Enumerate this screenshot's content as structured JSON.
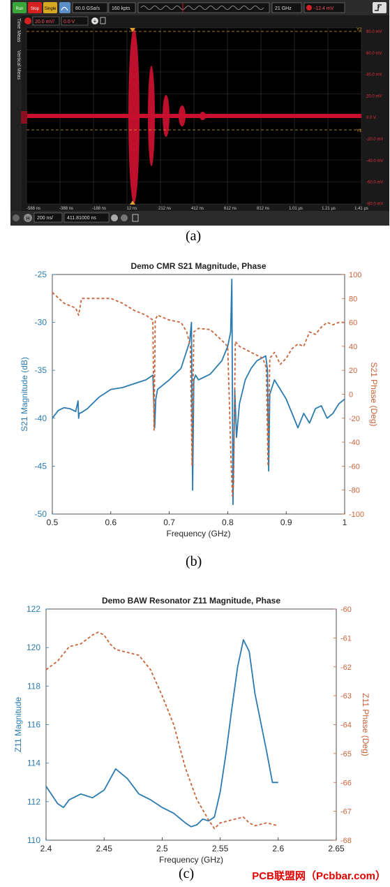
{
  "scope": {
    "toolbar": {
      "run": "Run",
      "stop": "Stop",
      "single": "Single",
      "sample_rate": "80.0 GSa/s",
      "points": "160 kpts",
      "bandwidth": "21 GHz",
      "trigger_level": "-12.4 mV"
    },
    "channel": {
      "scale": "20.0 mV/",
      "offset": "0.0 V"
    },
    "side_tabs": [
      "Time Meas",
      "Vertical Meas"
    ],
    "right_labels": [
      "80.0 mV",
      "60.0 mV",
      "40.0 mV",
      "20.0 mV",
      "0.0 V",
      "-20.0 mV",
      "-40.0 mV",
      "-60.0 mV",
      "-80.0 mV"
    ],
    "time_labels": [
      "-588 ns",
      "-388 ns",
      "-188 ns",
      "12 ns",
      "212 ns",
      "412 ns",
      "612 ns",
      "812 ns",
      "1.01 µs",
      "1.21 µs",
      "1.41 µs"
    ],
    "marker_top": "Y2",
    "marker_mid": "Y1",
    "timebase": {
      "scale": "200 ns/",
      "position": "411.81000 ns"
    }
  },
  "captions": {
    "a": "(a)",
    "b": "(b)",
    "c": "(c)"
  },
  "watermark": "PCB联盟网（Pcbbar.com）",
  "chart_data": [
    {
      "type": "line",
      "title": "Demo CMR S21 Magnitude, Phase",
      "xlabel": "Frequency (GHz)",
      "ylabel": "S21 Magnitude (dB)",
      "y2label": "S21 Phase (Deg)",
      "xlim": [
        0.5,
        1.0
      ],
      "ylim": [
        -50,
        -25
      ],
      "y2lim": [
        -100,
        100
      ],
      "xticks": [
        "0.5",
        "0.6",
        "0.7",
        "0.8",
        "0.9",
        "1"
      ],
      "yticks": [
        "-25",
        "-30",
        "-35",
        "-40",
        "-45",
        "-50"
      ],
      "y2ticks": [
        "100",
        "80",
        "60",
        "40",
        "20",
        "0",
        "-20",
        "-40",
        "-60",
        "-80",
        "-100"
      ],
      "colors": {
        "magnitude": "#2b7bb0",
        "phase": "#c8633a"
      },
      "series": [
        {
          "axis": "left",
          "x": [
            0.5,
            0.51,
            0.52,
            0.53,
            0.54,
            0.544,
            0.545,
            0.546,
            0.55,
            0.56,
            0.57,
            0.58,
            0.6,
            0.62,
            0.64,
            0.66,
            0.672,
            0.675,
            0.677,
            0.68,
            0.7,
            0.72,
            0.735,
            0.738,
            0.74,
            0.742,
            0.745,
            0.75,
            0.77,
            0.79,
            0.8,
            0.805,
            0.807,
            0.809,
            0.812,
            0.815,
            0.82,
            0.83,
            0.84,
            0.85,
            0.865,
            0.868,
            0.87,
            0.872,
            0.88,
            0.89,
            0.9,
            0.91,
            0.92,
            0.93,
            0.94,
            0.95,
            0.96,
            0.97,
            0.98,
            0.99,
            1.0
          ],
          "y": [
            -40.0,
            -39.2,
            -38.9,
            -39.0,
            -39.3,
            -38.2,
            -40.0,
            -39.5,
            -39.4,
            -39.0,
            -38.4,
            -37.8,
            -37.0,
            -36.8,
            -36.4,
            -36.0,
            -35.5,
            -41.0,
            -38.0,
            -37.0,
            -36.0,
            -34.8,
            -32.0,
            -30.0,
            -47.5,
            -36.0,
            -35.5,
            -36.0,
            -35.4,
            -34.0,
            -32.5,
            -31.0,
            -25.5,
            -49.0,
            -37.0,
            -42.0,
            -38.5,
            -36.0,
            -34.8,
            -34.0,
            -33.5,
            -35.0,
            -45.5,
            -37.5,
            -36.0,
            -37.0,
            -38.0,
            -39.5,
            -41.0,
            -39.5,
            -40.5,
            -39.0,
            -38.7,
            -40.0,
            -39.5,
            -38.5,
            -38.0
          ],
          "name": ""
        },
        {
          "axis": "right",
          "x": [
            0.5,
            0.52,
            0.54,
            0.545,
            0.55,
            0.57,
            0.6,
            0.62,
            0.64,
            0.66,
            0.672,
            0.674,
            0.676,
            0.68,
            0.7,
            0.72,
            0.73,
            0.736,
            0.739,
            0.742,
            0.75,
            0.77,
            0.79,
            0.8,
            0.806,
            0.808,
            0.81,
            0.813,
            0.82,
            0.84,
            0.86,
            0.866,
            0.869,
            0.872,
            0.88,
            0.89,
            0.9,
            0.91,
            0.92,
            0.93,
            0.94,
            0.95,
            0.96,
            0.97,
            0.98,
            0.99,
            1.0
          ],
          "y": [
            85,
            76,
            72,
            66,
            80,
            80,
            80,
            76,
            70,
            66,
            62,
            -30,
            62,
            66,
            62,
            60,
            52,
            40,
            -60,
            52,
            55,
            54,
            45,
            40,
            -60,
            -85,
            -75,
            44,
            40,
            35,
            30,
            22,
            -60,
            30,
            35,
            25,
            30,
            38,
            42,
            40,
            52,
            50,
            56,
            60,
            58,
            60,
            60
          ],
          "name": ""
        }
      ]
    },
    {
      "type": "line",
      "title": "Demo BAW Resonator Z11 Magnitude, Phase",
      "xlabel": "Frequency (GHz)",
      "ylabel": "Z11 Magnitude",
      "y2label": "Z11 Phase (Deg)",
      "xlim": [
        2.4,
        2.65
      ],
      "ylim": [
        110,
        122
      ],
      "y2lim": [
        -68,
        -60
      ],
      "xticks": [
        "2.4",
        "2.45",
        "2.5",
        "2.55",
        "2.6",
        "2.65"
      ],
      "yticks": [
        "122",
        "120",
        "118",
        "116",
        "114",
        "112",
        "110"
      ],
      "y2ticks": [
        "-60",
        "-61",
        "-62",
        "-63",
        "-64",
        "-65",
        "-66",
        "-67",
        "-68"
      ],
      "colors": {
        "magnitude": "#2b7bb0",
        "phase": "#c8633a"
      },
      "series": [
        {
          "axis": "left",
          "x": [
            2.4,
            2.41,
            2.415,
            2.42,
            2.43,
            2.44,
            2.45,
            2.46,
            2.47,
            2.48,
            2.49,
            2.5,
            2.51,
            2.52,
            2.525,
            2.53,
            2.535,
            2.54,
            2.545,
            2.55,
            2.555,
            2.56,
            2.565,
            2.57,
            2.575,
            2.58,
            2.59,
            2.595,
            2.6
          ],
          "y": [
            112.8,
            111.9,
            111.7,
            112.1,
            112.4,
            112.2,
            112.6,
            113.7,
            113.2,
            112.4,
            112.1,
            111.7,
            111.4,
            110.9,
            110.7,
            110.8,
            111.1,
            111.0,
            111.2,
            112.5,
            114.5,
            116.8,
            119.0,
            120.4,
            119.8,
            117.6,
            114.6,
            113.0,
            113.0
          ],
          "name": ""
        },
        {
          "axis": "right",
          "x": [
            2.4,
            2.41,
            2.42,
            2.43,
            2.44,
            2.445,
            2.45,
            2.455,
            2.46,
            2.47,
            2.48,
            2.49,
            2.5,
            2.51,
            2.52,
            2.53,
            2.54,
            2.545,
            2.55,
            2.56,
            2.57,
            2.575,
            2.58,
            2.59,
            2.6
          ],
          "y": [
            -62.1,
            -61.8,
            -61.3,
            -61.2,
            -60.9,
            -60.8,
            -60.9,
            -61.2,
            -61.4,
            -61.5,
            -61.6,
            -62.1,
            -63.0,
            -64.0,
            -65.5,
            -66.6,
            -67.3,
            -67.6,
            -67.4,
            -67.3,
            -67.2,
            -67.4,
            -67.5,
            -67.4,
            -67.5
          ],
          "name": ""
        }
      ]
    }
  ]
}
